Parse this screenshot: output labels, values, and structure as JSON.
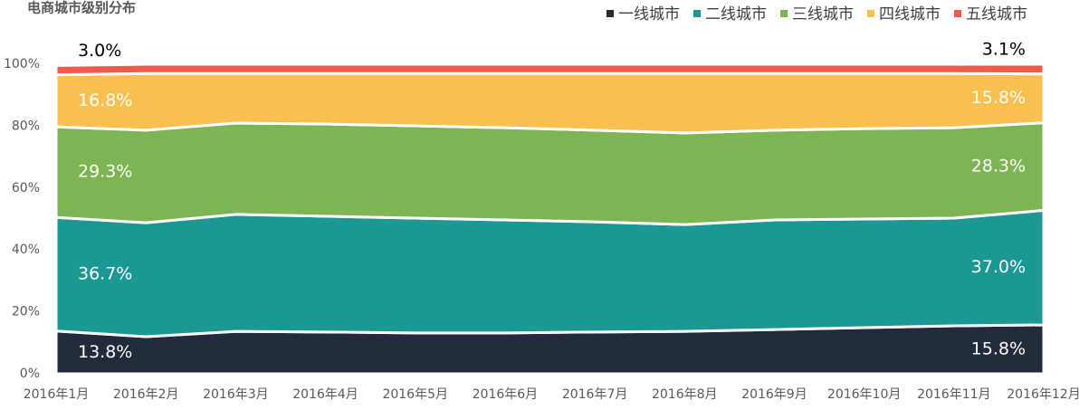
{
  "chart_data": {
    "type": "stacked-area",
    "title": "电商城市级别分布",
    "categories": [
      "2016年1月",
      "2016年2月",
      "2016年3月",
      "2016年4月",
      "2016年5月",
      "2016年6月",
      "2016年7月",
      "2016年8月",
      "2016年9月",
      "2016年10月",
      "2016年11月",
      "2016年12月"
    ],
    "ylim": [
      0,
      100
    ],
    "yticks": [
      {
        "value": 0,
        "label": "0%"
      },
      {
        "value": 20,
        "label": "20%"
      },
      {
        "value": 40,
        "label": "40%"
      },
      {
        "value": 60,
        "label": "60%"
      },
      {
        "value": 80,
        "label": "80%"
      },
      {
        "value": 100,
        "label": "100%"
      }
    ],
    "legend": "top-right",
    "series": [
      {
        "name": "一线城市",
        "color": "#212b3b",
        "values": [
          13.8,
          12.0,
          13.7,
          13.5,
          13.2,
          13.2,
          13.5,
          13.7,
          14.3,
          14.9,
          15.5,
          15.8
        ],
        "value_labels": [
          "13.8%",
          null,
          null,
          null,
          null,
          null,
          null,
          null,
          null,
          null,
          null,
          "15.8%"
        ]
      },
      {
        "name": "二线城市",
        "color": "#1c9894",
        "values": [
          36.7,
          36.8,
          37.8,
          37.4,
          37.1,
          36.5,
          35.6,
          34.5,
          35.4,
          35.1,
          34.8,
          37.0
        ],
        "value_labels": [
          "36.7%",
          null,
          null,
          null,
          null,
          null,
          null,
          null,
          null,
          null,
          null,
          "37.0%"
        ]
      },
      {
        "name": "三线城市",
        "color": "#7db454",
        "values": [
          29.3,
          29.9,
          29.5,
          29.8,
          29.8,
          29.8,
          29.6,
          29.6,
          29.0,
          29.2,
          29.2,
          28.3
        ],
        "value_labels": [
          "29.3%",
          null,
          null,
          null,
          null,
          null,
          null,
          null,
          null,
          null,
          null,
          "28.3%"
        ]
      },
      {
        "name": "四线城市",
        "color": "#f9c04f",
        "values": [
          16.8,
          18.3,
          16.0,
          16.3,
          16.9,
          17.5,
          18.3,
          19.2,
          18.3,
          17.8,
          17.5,
          15.8
        ],
        "value_labels": [
          "16.8%",
          null,
          null,
          null,
          null,
          null,
          null,
          null,
          null,
          null,
          null,
          "15.8%"
        ]
      },
      {
        "name": "五线城市",
        "color": "#ef5a4b",
        "values": [
          3.0,
          3.0,
          3.0,
          3.0,
          3.0,
          3.0,
          3.0,
          3.0,
          3.0,
          3.0,
          3.0,
          3.1
        ],
        "value_labels": [
          "3.0%",
          null,
          null,
          null,
          null,
          null,
          null,
          null,
          null,
          null,
          null,
          "3.1%"
        ]
      }
    ]
  }
}
